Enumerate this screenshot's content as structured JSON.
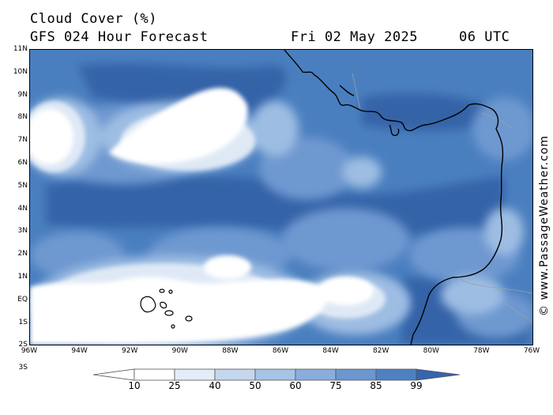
{
  "header": {
    "title": "Cloud Cover (%)",
    "model": "GFS 024 Hour Forecast",
    "date": "Fri 02 May 2025",
    "time": "06 UTC"
  },
  "credit": "© www.PassageWeather.com",
  "axes": {
    "lat_labels": [
      "11N",
      "10N",
      "9N",
      "8N",
      "7N",
      "6N",
      "5N",
      "4N",
      "3N",
      "2N",
      "1N",
      "EQ",
      "1S",
      "2S",
      "3S"
    ],
    "lon_labels": [
      "96W",
      "94W",
      "92W",
      "90W",
      "88W",
      "86W",
      "84W",
      "82W",
      "80W",
      "78W",
      "76W"
    ]
  },
  "legend": {
    "labels": [
      "10",
      "25",
      "40",
      "50",
      "60",
      "75",
      "85",
      "99"
    ],
    "colors": [
      "#ffffff",
      "#e3edf8",
      "#c4d7ee",
      "#a7c3e6",
      "#8aaedb",
      "#6c97d0",
      "#4f80c2",
      "#3565ad"
    ]
  },
  "colors": {
    "clear": "#ffffff",
    "light": "#dfe9f6",
    "medium": "#9ebde3",
    "heavy": "#6e98d0",
    "overcast": "#4a7fbf",
    "deep": "#3464a8",
    "coast": "#000000",
    "border": "#9aa0a8"
  }
}
